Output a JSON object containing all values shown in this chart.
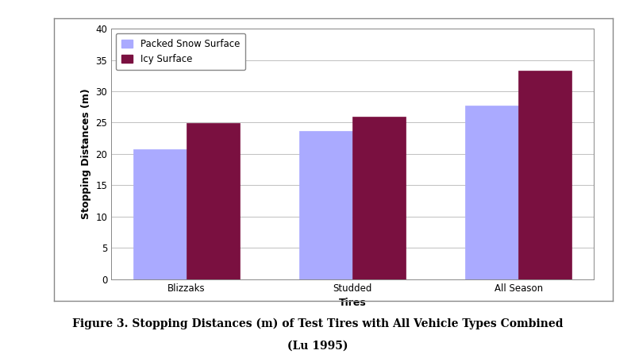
{
  "categories": [
    "Blizzaks",
    "Studded",
    "All Season"
  ],
  "packed_snow": [
    20.7,
    23.7,
    27.7
  ],
  "icy_surface": [
    24.9,
    26.0,
    33.3
  ],
  "packed_snow_color": "#aaaaff",
  "icy_surface_color": "#7a1040",
  "bar_width": 0.32,
  "xlabel": "Tires",
  "ylabel": "Stopping Distances (m)",
  "ylim": [
    0,
    40
  ],
  "yticks": [
    0,
    5,
    10,
    15,
    20,
    25,
    30,
    35,
    40
  ],
  "legend_labels": [
    "Packed Snow Surface",
    "Icy Surface"
  ],
  "title": "Figure 3. Stopping Distances (m) of Test Tires with All Vehicle Types Combined",
  "subtitle": "(Lu 1995)",
  "title_fontsize": 10,
  "axis_label_fontsize": 9,
  "tick_fontsize": 8.5,
  "legend_fontsize": 8.5,
  "bg_color": "#ffffff",
  "plot_bg_color": "#ffffff",
  "grid_color": "#c0c0c0"
}
